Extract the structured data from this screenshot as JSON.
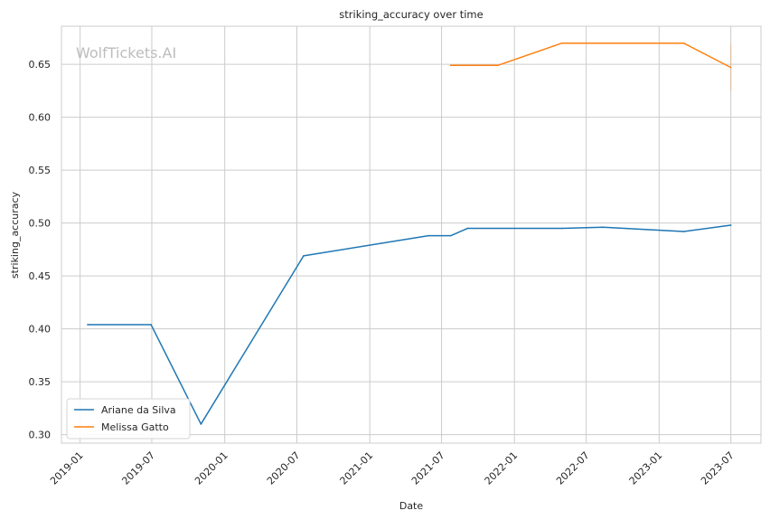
{
  "chart_data": {
    "type": "line",
    "title": "striking_accuracy over time",
    "xlabel": "Date",
    "ylabel": "striking_accuracy",
    "watermark": "WolfTickets.AI",
    "x_ticks": [
      "2019-01",
      "2019-07",
      "2020-01",
      "2020-07",
      "2021-01",
      "2021-07",
      "2022-01",
      "2022-07",
      "2023-01",
      "2023-07"
    ],
    "y_ticks": [
      "0.30",
      "0.35",
      "0.40",
      "0.45",
      "0.50",
      "0.55",
      "0.60",
      "0.65"
    ],
    "xlim": [
      "2018-11-15",
      "2023-09-15"
    ],
    "ylim": [
      0.292,
      0.686
    ],
    "grid": true,
    "legend_position": "lower-left",
    "colors": {
      "Ariane da Silva": "#1f77b4",
      "Melissa Gatto": "#ff7f0e"
    },
    "series": [
      {
        "name": "Ariane da Silva",
        "color": "#1f77b4",
        "points": [
          {
            "x": "2019-01-20",
            "y": 0.404
          },
          {
            "x": "2019-06-29",
            "y": 0.404
          },
          {
            "x": "2019-11-02",
            "y": 0.31
          },
          {
            "x": "2020-07-18",
            "y": 0.469
          },
          {
            "x": "2021-05-29",
            "y": 0.488
          },
          {
            "x": "2021-07-24",
            "y": 0.488
          },
          {
            "x": "2021-09-05",
            "y": 0.495
          },
          {
            "x": "2022-05-01",
            "y": 0.495
          },
          {
            "x": "2022-08-13",
            "y": 0.496
          },
          {
            "x": "2023-03-04",
            "y": 0.492
          },
          {
            "x": "2023-07-01",
            "y": 0.498
          }
        ]
      },
      {
        "name": "Melissa Gatto",
        "color": "#ff7f0e",
        "points": [
          {
            "x": "2021-07-24",
            "y": 0.649
          },
          {
            "x": "2021-11-20",
            "y": 0.649
          },
          {
            "x": "2022-05-01",
            "y": 0.67
          },
          {
            "x": "2023-03-04",
            "y": 0.67
          },
          {
            "x": "2023-07-01",
            "y": 0.647
          }
        ]
      }
    ]
  }
}
